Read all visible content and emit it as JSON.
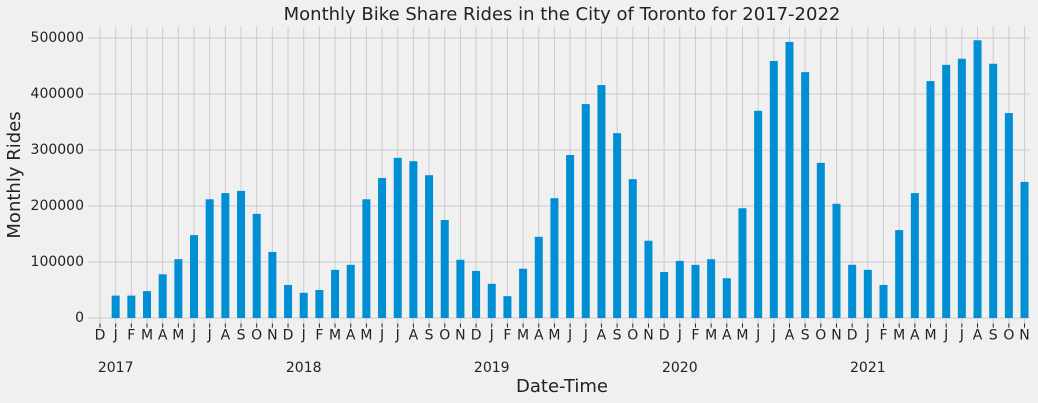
{
  "chart_data": {
    "type": "bar",
    "title": "Monthly Bike Share Rides in the City of Toronto for 2017-2022",
    "x_label": "Date-Time",
    "y_label": "Monthly Rides",
    "categories": [
      "D",
      "J",
      "F",
      "M",
      "A",
      "M",
      "J",
      "J",
      "A",
      "S",
      "O",
      "N",
      "D",
      "J",
      "F",
      "M",
      "A",
      "M",
      "J",
      "J",
      "A",
      "S",
      "O",
      "N",
      "D",
      "J",
      "F",
      "M",
      "A",
      "M",
      "J",
      "J",
      "A",
      "S",
      "O",
      "N",
      "D",
      "J",
      "F",
      "M",
      "A",
      "M",
      "J",
      "J",
      "A",
      "S",
      "O",
      "N",
      "D",
      "J",
      "F",
      "M",
      "A",
      "M",
      "J",
      "J",
      "A",
      "S",
      "O",
      "N"
    ],
    "year_labels": [
      "2017",
      "2018",
      "2019",
      "2020",
      "2021"
    ],
    "values": [
      null,
      40000,
      40000,
      48000,
      78000,
      105000,
      148000,
      212000,
      223000,
      227000,
      186000,
      118000,
      59000,
      45000,
      50000,
      86000,
      95000,
      212000,
      250000,
      286000,
      280000,
      255000,
      175000,
      104000,
      84000,
      61000,
      39000,
      88000,
      145000,
      214000,
      291000,
      382000,
      416000,
      330000,
      248000,
      138000,
      82000,
      102000,
      95000,
      105000,
      71000,
      196000,
      370000,
      459000,
      493000,
      439000,
      277000,
      204000,
      95000,
      86000,
      59000,
      157000,
      223000,
      423000,
      452000,
      463000,
      496000,
      454000,
      366000,
      243000
    ],
    "color": "#008fd5",
    "ylim": [
      -10000,
      520000
    ],
    "yticks": [
      0,
      100000,
      200000,
      300000,
      400000,
      500000
    ],
    "grid": true
  }
}
